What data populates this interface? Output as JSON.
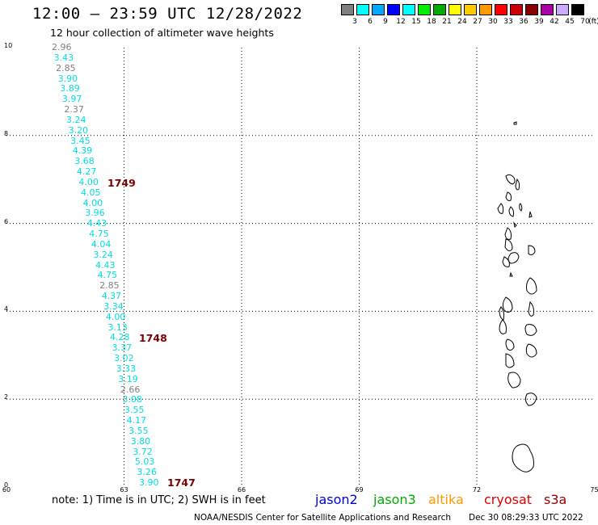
{
  "header": {
    "title": "12:00 – 23:59 UTC 12/28/2022",
    "subtitle": "12 hour collection of altimeter wave heights"
  },
  "legend": {
    "unit": "(ft)",
    "colors": [
      "#808080",
      "#00ffff",
      "#00aaff",
      "#0000ff",
      "#00ffff",
      "#00ee00",
      "#00aa00",
      "#ffff00",
      "#ffcc00",
      "#ff9900",
      "#ff0000",
      "#cc0000",
      "#880000",
      "#aa00aa",
      "#ccaaff",
      "#000000"
    ],
    "colors_note": "",
    "labels": [
      "3",
      "6",
      "9",
      "12",
      "15",
      "18",
      "21",
      "24",
      "27",
      "30",
      "33",
      "36",
      "39",
      "42",
      "45",
      "70"
    ]
  },
  "axes": {
    "y_ticks": [
      "10",
      "8",
      "6",
      "4",
      "2",
      "0"
    ],
    "x_ticks": [
      "60",
      "63",
      "66",
      "69",
      "72",
      "75"
    ]
  },
  "track": {
    "wave_heights": [
      {
        "text": "2.96",
        "color": "#808080"
      },
      {
        "text": "3.43",
        "color": "#00e0e0"
      },
      {
        "text": "2.85",
        "color": "#808080"
      },
      {
        "text": "3.90",
        "color": "#00e0e0"
      },
      {
        "text": "3.89",
        "color": "#00e0e0"
      },
      {
        "text": "3.97",
        "color": "#00e0e0"
      },
      {
        "text": "2.37",
        "color": "#808080"
      },
      {
        "text": "3.24",
        "color": "#00e0e0"
      },
      {
        "text": "3.20",
        "color": "#00e0e0"
      },
      {
        "text": "3.45",
        "color": "#00e0e0"
      },
      {
        "text": "4.39",
        "color": "#00e0e0"
      },
      {
        "text": "3.68",
        "color": "#00e0e0"
      },
      {
        "text": "4.27",
        "color": "#00e0e0"
      },
      {
        "text": "4.00",
        "color": "#00e0e0"
      },
      {
        "text": "4.05",
        "color": "#00e0e0"
      },
      {
        "text": "4.00",
        "color": "#00e0e0"
      },
      {
        "text": "3.96",
        "color": "#00e0e0"
      },
      {
        "text": "4.43",
        "color": "#00e0e0"
      },
      {
        "text": "4.75",
        "color": "#00e0e0"
      },
      {
        "text": "4.04",
        "color": "#00e0e0"
      },
      {
        "text": "3.24",
        "color": "#00e0e0"
      },
      {
        "text": "4.43",
        "color": "#00e0e0"
      },
      {
        "text": "4.75",
        "color": "#00e0e0"
      },
      {
        "text": "2.85",
        "color": "#808080"
      },
      {
        "text": "4.37",
        "color": "#00e0e0"
      },
      {
        "text": "3.34",
        "color": "#00e0e0"
      },
      {
        "text": "4.00",
        "color": "#00e0e0"
      },
      {
        "text": "3.13",
        "color": "#00e0e0"
      },
      {
        "text": "4.28",
        "color": "#00e0e0"
      },
      {
        "text": "3.37",
        "color": "#00e0e0"
      },
      {
        "text": "3.02",
        "color": "#00e0e0"
      },
      {
        "text": "3.33",
        "color": "#00e0e0"
      },
      {
        "text": "3.19",
        "color": "#00e0e0"
      },
      {
        "text": "2.66",
        "color": "#808080"
      },
      {
        "text": "3.08",
        "color": "#00e0e0"
      },
      {
        "text": "3.55",
        "color": "#00e0e0"
      },
      {
        "text": "4.17",
        "color": "#00e0e0"
      },
      {
        "text": "3.55",
        "color": "#00e0e0"
      },
      {
        "text": "3.80",
        "color": "#00e0e0"
      },
      {
        "text": "3.72",
        "color": "#00e0e0"
      },
      {
        "text": "5.03",
        "color": "#00e0e0"
      },
      {
        "text": "3.26",
        "color": "#00e0e0"
      },
      {
        "text": "3.90",
        "color": "#00e0e0"
      }
    ],
    "time_labels": [
      "1749",
      "1748",
      "1747"
    ]
  },
  "notes": {
    "note": "note:  1) Time is in UTC; 2) SWH is in feet"
  },
  "missions": [
    {
      "name": "jason2",
      "color": "#0000dd"
    },
    {
      "name": "jason3",
      "color": "#00aa00"
    },
    {
      "name": "altika",
      "color": "#ff9900"
    },
    {
      "name": "cryosat",
      "color": "#dd0000"
    },
    {
      "name": "s3a",
      "color": "#990000"
    }
  ],
  "footer": {
    "credit": "NOAA/NESDIS Center for Satellite Applications and Research",
    "timestamp": "Dec 30 08:29:33 UTC 2022"
  }
}
